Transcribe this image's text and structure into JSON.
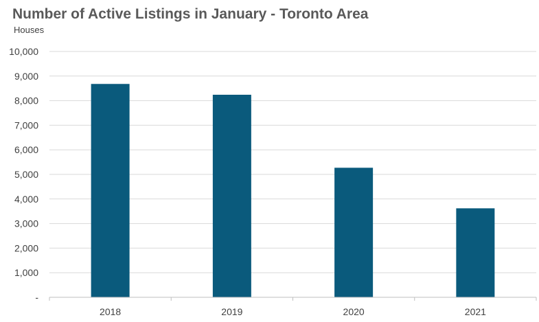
{
  "chart_data": {
    "type": "bar",
    "title": "Number of Active Listings in January - Toronto Area",
    "subtitle": "Houses",
    "xlabel": "",
    "ylabel": "",
    "categories": [
      "2018",
      "2019",
      "2020",
      "2021"
    ],
    "values": [
      8680,
      8240,
      5270,
      3620
    ],
    "ylim": [
      0,
      10000
    ],
    "yticks": [
      0,
      1000,
      2000,
      3000,
      4000,
      5000,
      6000,
      7000,
      8000,
      9000,
      10000
    ],
    "ytick_labels": [
      "-",
      "1,000",
      "2,000",
      "3,000",
      "4,000",
      "5,000",
      "6,000",
      "7,000",
      "8,000",
      "9,000",
      "10,000"
    ],
    "grid": true,
    "legend": "none",
    "bar_color": "#0a5a7c",
    "grid_color": "#d9d9d9",
    "axis_color": "#bfbfbf"
  }
}
